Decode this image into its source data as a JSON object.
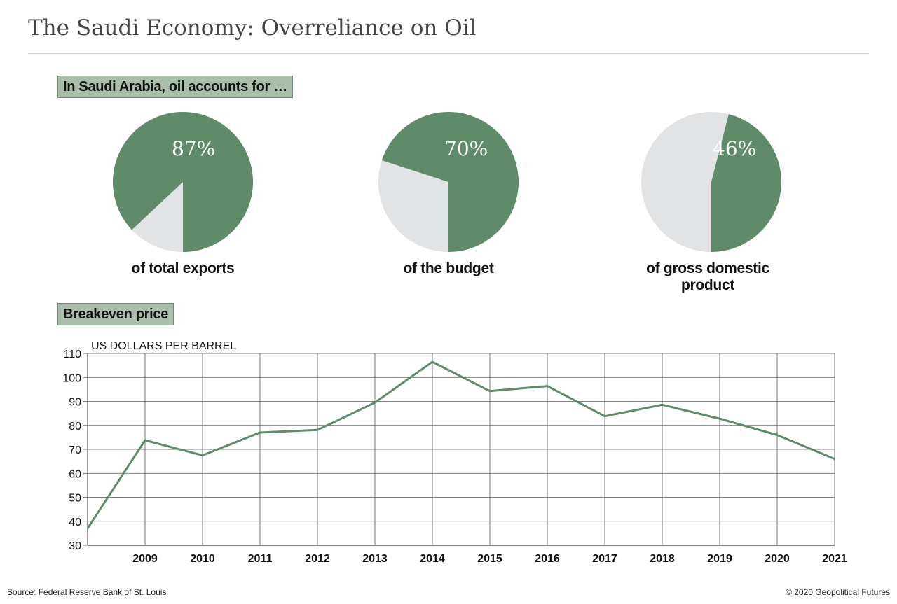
{
  "title": "The Saudi Economy: Overreliance on Oil",
  "pies_header": "In Saudi Arabia, oil accounts for …",
  "line_header": "Breakeven price",
  "colors": {
    "oil": "#5f8b68",
    "rest": "#e2e3e5",
    "label_bg": "#a9bfac"
  },
  "pies": [
    {
      "value_label": "87%",
      "caption": "of total exports"
    },
    {
      "value_label": "70%",
      "caption": "of the budget"
    },
    {
      "value_label": "46%",
      "caption": "of gross domestic product"
    }
  ],
  "chart_data": [
    {
      "type": "pie",
      "title": "of total exports",
      "slices": [
        {
          "label": "oil",
          "value": 87
        },
        {
          "label": "other",
          "value": 13
        }
      ]
    },
    {
      "type": "pie",
      "title": "of the budget",
      "slices": [
        {
          "label": "oil",
          "value": 70
        },
        {
          "label": "other",
          "value": 30
        }
      ]
    },
    {
      "type": "pie",
      "title": "of gross domestic product",
      "slices": [
        {
          "label": "oil",
          "value": 46
        },
        {
          "label": "other",
          "value": 54
        }
      ]
    },
    {
      "type": "line",
      "title": "Breakeven price",
      "ylabel": "US DOLLARS PER BARREL",
      "ylim": [
        30,
        110
      ],
      "yticks": [
        30,
        40,
        50,
        60,
        70,
        80,
        90,
        100,
        110
      ],
      "xlim": [
        2008,
        2021
      ],
      "xticks": [
        "2009",
        "2010",
        "2011",
        "2012",
        "2013",
        "2014",
        "2015",
        "2016",
        "2017",
        "2018",
        "2019",
        "2020",
        "2021"
      ],
      "grid": true,
      "series": [
        {
          "x": [
            2008,
            2009,
            2010,
            2011,
            2012,
            2013,
            2014,
            2015,
            2016,
            2017,
            2018,
            2019,
            2020,
            2021
          ],
          "values": [
            37,
            73.8,
            67.5,
            77,
            78.1,
            89.5,
            106.5,
            94.3,
            96.4,
            83.8,
            88.6,
            82.8,
            76,
            66
          ]
        }
      ]
    }
  ],
  "footer": {
    "source": "Source: Federal Reserve Bank of St. Louis",
    "copyright": "© 2020 Geopolitical Futures"
  }
}
